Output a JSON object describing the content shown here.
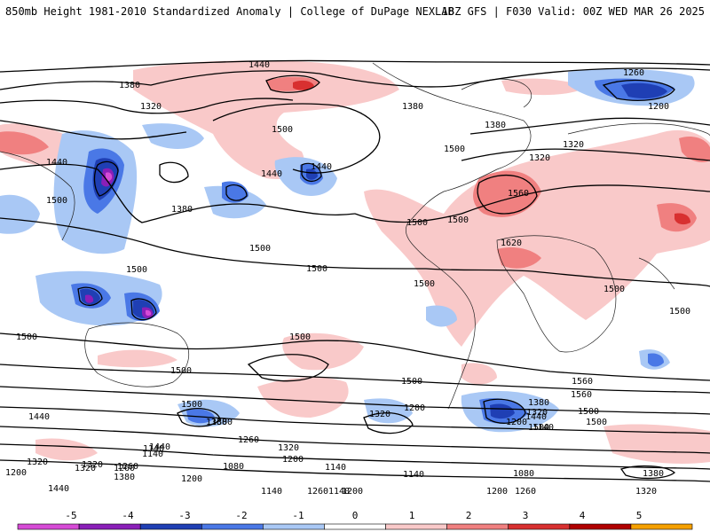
{
  "header": {
    "left": "850mb Height 1981-2010 Standardized Anomaly | College of DuPage NEXLAB",
    "right": "18Z GFS | F030 Valid: 00Z WED MAR 26 2025"
  },
  "colorbar": {
    "ticks": [
      "-5",
      "-4",
      "-3",
      "-2",
      "-1",
      "0",
      "1",
      "2",
      "3",
      "4",
      "5"
    ],
    "colors": [
      "#d64bd6",
      "#8a1fb8",
      "#1f3fb4",
      "#4a78e6",
      "#a9c8f5",
      "#ffffff",
      "#f9c9c9",
      "#f08080",
      "#d83030",
      "#b00000",
      "#f5a000"
    ]
  },
  "map": {
    "contour_labels": [
      "1440",
      "1380",
      "1260",
      "1200",
      "1320",
      "1380",
      "1380",
      "1320",
      "1500",
      "1440",
      "1500",
      "1440",
      "1440",
      "1320",
      "1380",
      "1560",
      "1500",
      "1500",
      "1500",
      "1500",
      "1500",
      "1500",
      "1620",
      "1500",
      "1500",
      "1500",
      "1500",
      "1500",
      "1500",
      "1500",
      "1560",
      "1560",
      "1500",
      "1500",
      "1320",
      "1200",
      "1500",
      "1440",
      "1380",
      "1380",
      "1440",
      "1500",
      "1320",
      "1260",
      "1140",
      "1440",
      "1380",
      "1320",
      "1260",
      "1320",
      "1200",
      "1140",
      "1140",
      "1080",
      "1200",
      "1080",
      "1140",
      "1140",
      "1320",
      "1260",
      "1200",
      "1140",
      "1200",
      "1260",
      "1380",
      "1320",
      "1440",
      "1200",
      "1380",
      "1320",
      "1260",
      "1140",
      "1200"
    ]
  }
}
